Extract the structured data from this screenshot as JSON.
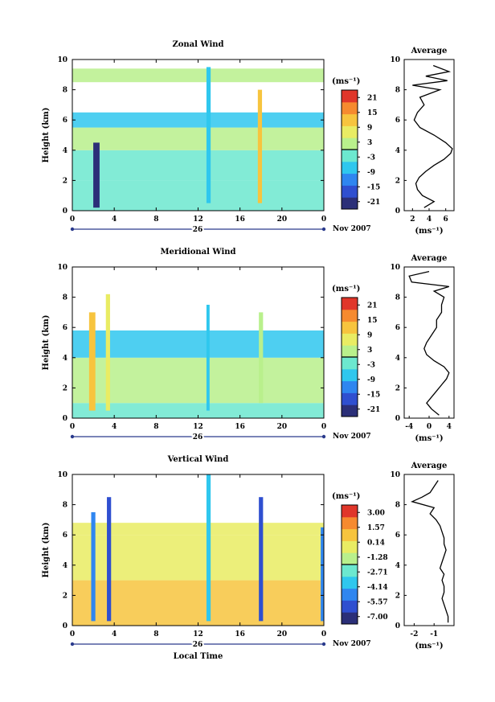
{
  "colors": {
    "cmap": [
      "#2b2f78",
      "#2f4fd0",
      "#2f86f0",
      "#2fc7ee",
      "#6ce8cf",
      "#b9f08c",
      "#e9ec63",
      "#f7c43e",
      "#f68a2f",
      "#e0362a"
    ],
    "axis": "#000000",
    "time_bar": "#2a3a8c"
  },
  "chart_data": [
    {
      "type": "heatmap",
      "title": "Zonal Wind",
      "ylabel": "Height (km)",
      "xlabel": "",
      "xlim": [
        0,
        24
      ],
      "ylim": [
        0,
        10
      ],
      "xticks": [
        "0",
        "4",
        "8",
        "12",
        "16",
        "20",
        "0"
      ],
      "yticks": [
        "0",
        "2",
        "4",
        "6",
        "8",
        "10"
      ],
      "date_label": "26",
      "month_label": "Nov 2007",
      "colorbar": {
        "unit": "(ms⁻¹)",
        "ticks": [
          "21",
          "15",
          "9",
          "3",
          "-3",
          "-9",
          "-15",
          "-21"
        ],
        "range": [
          -24,
          24
        ]
      },
      "bands": [
        {
          "y0": 0,
          "y1": 2,
          "v": -4
        },
        {
          "y0": 2,
          "y1": 4,
          "v": -2
        },
        {
          "y0": 4,
          "y1": 5.5,
          "v": 0
        },
        {
          "y0": 5.5,
          "y1": 6.5,
          "v": -5
        },
        {
          "y0": 8.5,
          "y1": 9.4,
          "v": 4
        }
      ],
      "columns": [
        {
          "x0": 2.0,
          "x1": 2.6,
          "y0": 0.2,
          "y1": 4.5,
          "v": -20
        },
        {
          "x0": 12.8,
          "x1": 13.2,
          "y0": 0.5,
          "y1": 9.5,
          "v": -6
        },
        {
          "x0": 17.7,
          "x1": 18.1,
          "y0": 0.5,
          "y1": 8.0,
          "v": 12
        }
      ],
      "average": {
        "title": "Average",
        "xlabel": "(ms⁻¹)",
        "xticks": [
          "2",
          "4",
          "6"
        ],
        "xlim": [
          1,
          7
        ],
        "heights": [
          0.2,
          0.6,
          1,
          1.4,
          1.8,
          2.2,
          2.6,
          3,
          3.4,
          3.8,
          4.1,
          4.5,
          5,
          5.5,
          6,
          6.5,
          7,
          7.5,
          8,
          8.3,
          8.6,
          8.9,
          9.2,
          9.6
        ],
        "values": [
          3.4,
          4.6,
          3.2,
          2.6,
          2.4,
          2.8,
          3.6,
          4.6,
          5.8,
          6.6,
          6.8,
          6.0,
          4.6,
          2.9,
          2.2,
          2.6,
          3.4,
          2.9,
          5.3,
          2.0,
          6.2,
          3.6,
          6.4,
          4.5
        ]
      }
    },
    {
      "type": "heatmap",
      "title": "Meridional Wind",
      "ylabel": "Height (km)",
      "xlabel": "",
      "xlim": [
        0,
        24
      ],
      "ylim": [
        0,
        10
      ],
      "xticks": [
        "0",
        "4",
        "8",
        "12",
        "16",
        "20",
        "0"
      ],
      "yticks": [
        "0",
        "2",
        "4",
        "6",
        "8",
        "10"
      ],
      "date_label": "26",
      "month_label": "Nov 2007",
      "colorbar": {
        "unit": "(ms⁻¹)",
        "ticks": [
          "21",
          "15",
          "9",
          "3",
          "-3",
          "-9",
          "-15",
          "-21"
        ],
        "range": [
          -24,
          24
        ]
      },
      "bands": [
        {
          "y0": 0,
          "y1": 1.0,
          "v": -1
        },
        {
          "y0": 1.0,
          "y1": 4.0,
          "v": 1
        },
        {
          "y0": 4.0,
          "y1": 5.0,
          "v": -6
        },
        {
          "y0": 5.0,
          "y1": 5.8,
          "v": -9
        }
      ],
      "columns": [
        {
          "x0": 1.6,
          "x1": 2.2,
          "y0": 0.5,
          "y1": 7.0,
          "v": 14
        },
        {
          "x0": 3.2,
          "x1": 3.6,
          "y0": 0.5,
          "y1": 8.2,
          "v": 6
        },
        {
          "x0": 12.8,
          "x1": 13.1,
          "y0": 0.5,
          "y1": 7.5,
          "v": -5
        },
        {
          "x0": 17.8,
          "x1": 18.2,
          "y0": 1.0,
          "y1": 7.0,
          "v": 2
        }
      ],
      "average": {
        "title": "Average",
        "xlabel": "(ms⁻¹)",
        "xticks": [
          "-4",
          "0",
          "4"
        ],
        "xlim": [
          -5,
          5
        ],
        "heights": [
          0.2,
          0.6,
          1,
          1.4,
          1.8,
          2.2,
          2.6,
          3,
          3.4,
          3.8,
          4.2,
          4.6,
          5,
          5.5,
          6,
          6.5,
          7,
          7.5,
          8,
          8.4,
          8.7,
          9.0,
          9.4,
          9.7
        ],
        "values": [
          2.0,
          0.5,
          -0.5,
          0.5,
          1.5,
          2.5,
          3.5,
          4.0,
          3.0,
          1.0,
          -0.5,
          -1.0,
          -0.5,
          0.5,
          1.5,
          1.5,
          2.5,
          2.5,
          3.0,
          1.0,
          4.0,
          -3.5,
          -4.0,
          0.0
        ]
      }
    },
    {
      "type": "heatmap",
      "title": "Vertical Wind",
      "ylabel": "Height (km)",
      "xlabel": "Local Time",
      "xlim": [
        0,
        24
      ],
      "ylim": [
        0,
        10
      ],
      "xticks": [
        "0",
        "4",
        "8",
        "12",
        "16",
        "20",
        "0"
      ],
      "yticks": [
        "0",
        "2",
        "4",
        "6",
        "8",
        "10"
      ],
      "date_label": "26",
      "month_label": "Nov 2007",
      "colorbar": {
        "unit": "(ms⁻¹)",
        "ticks": [
          "3.00",
          "1.57",
          "0.14",
          "-1.28",
          "-2.71",
          "-4.14",
          "-5.57",
          "-7.00"
        ],
        "range": [
          -7.7,
          3.7
        ]
      },
      "bands": [
        {
          "y0": 0,
          "y1": 3.0,
          "v": 0.6
        },
        {
          "y0": 3.0,
          "y1": 6.0,
          "v": 0.2
        },
        {
          "y0": 6.0,
          "y1": 6.8,
          "v": -0.3
        }
      ],
      "columns": [
        {
          "x0": 1.8,
          "x1": 2.2,
          "y0": 0.3,
          "y1": 7.5,
          "v": -5
        },
        {
          "x0": 3.3,
          "x1": 3.7,
          "y0": 0.3,
          "y1": 8.5,
          "v": -6.5
        },
        {
          "x0": 12.8,
          "x1": 13.2,
          "y0": 0.3,
          "y1": 10.0,
          "v": -3.5
        },
        {
          "x0": 17.8,
          "x1": 18.2,
          "y0": 0.3,
          "y1": 8.5,
          "v": -6
        },
        {
          "x0": 23.7,
          "x1": 24.0,
          "y0": 0.3,
          "y1": 6.5,
          "v": -5
        }
      ],
      "average": {
        "title": "Average",
        "xlabel": "(ms⁻¹)",
        "xticks": [
          "-2",
          "-1"
        ],
        "xlim": [
          -2.5,
          0
        ],
        "heights": [
          0.2,
          0.6,
          1,
          1.4,
          1.8,
          2.2,
          2.6,
          3,
          3.4,
          3.8,
          4.2,
          4.6,
          5,
          5.4,
          5.8,
          6.2,
          6.6,
          7,
          7.4,
          7.8,
          8.2,
          8.5,
          8.8,
          9.2,
          9.6
        ],
        "values": [
          -0.3,
          -0.3,
          -0.4,
          -0.5,
          -0.6,
          -0.5,
          -0.5,
          -0.6,
          -0.5,
          -0.7,
          -0.6,
          -0.5,
          -0.4,
          -0.5,
          -0.5,
          -0.6,
          -0.7,
          -0.9,
          -1.2,
          -1.0,
          -2.1,
          -1.6,
          -1.2,
          -1.0,
          -0.8
        ]
      }
    }
  ]
}
